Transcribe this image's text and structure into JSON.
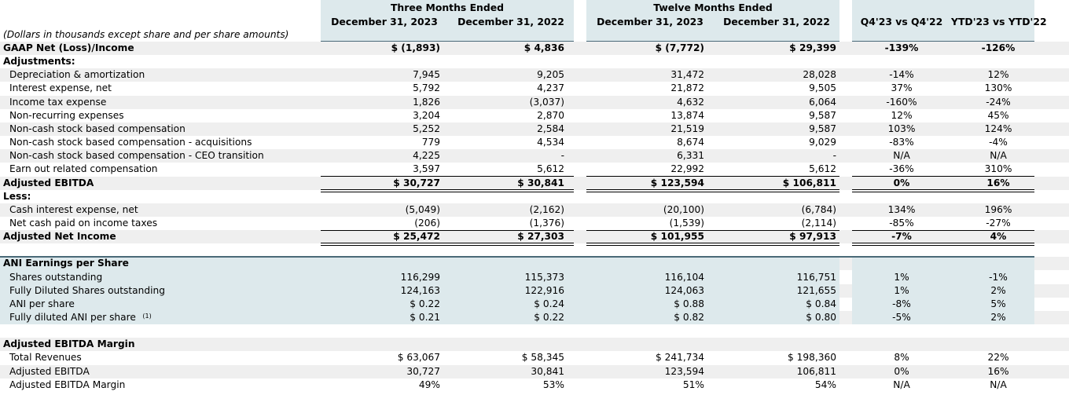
{
  "header": {
    "three_months": "Three Months Ended",
    "twelve_months": "Twelve Months Ended",
    "dec2023": "December 31, 2023",
    "dec2022": "December 31, 2022",
    "q_vs_q": "Q4'23 vs Q4'22",
    "ytd_vs_ytd": "YTD'23 vs YTD'22",
    "note": "(Dollars in thousands except share and per share amounts)"
  },
  "rows": [
    {
      "label": "GAAP Net (Loss)/Income",
      "bold": true,
      "v": [
        "$ (1,893)",
        "$ 4,836",
        "$ (7,772)",
        "$ 29,399",
        "-139%",
        "-126%"
      ]
    },
    {
      "label": "Adjustments:",
      "bold": true,
      "v": [
        "",
        "",
        "",
        "",
        "",
        ""
      ]
    },
    {
      "label": "Depreciation & amortization",
      "v": [
        "7,945",
        "9,205",
        "31,472",
        "28,028",
        "-14%",
        "12%"
      ]
    },
    {
      "label": "Interest expense, net",
      "v": [
        "5,792",
        "4,237",
        "21,872",
        "9,505",
        "37%",
        "130%"
      ]
    },
    {
      "label": "Income tax expense",
      "v": [
        "1,826",
        "(3,037)",
        "4,632",
        "6,064",
        "-160%",
        "-24%"
      ]
    },
    {
      "label": "Non-recurring expenses",
      "v": [
        "3,204",
        "2,870",
        "13,874",
        "9,587",
        "12%",
        "45%"
      ]
    },
    {
      "label": "Non-cash stock based compensation",
      "v": [
        "5,252",
        "2,584",
        "21,519",
        "9,587",
        "103%",
        "124%"
      ]
    },
    {
      "label": "Non-cash stock based compensation - acquisitions",
      "v": [
        "779",
        "4,534",
        "8,674",
        "9,029",
        "-83%",
        "-4%"
      ]
    },
    {
      "label": "Non-cash stock based compensation - CEO transition",
      "v": [
        "4,225",
        "-",
        "6,331",
        "-",
        "N/A",
        "N/A"
      ]
    },
    {
      "label": "Earn out related compensation",
      "v": [
        "3,597",
        "5,612",
        "22,992",
        "5,612",
        "-36%",
        "310%"
      ]
    },
    {
      "label": "Adjusted EBITDA",
      "bold": true,
      "v": [
        "$ 30,727",
        "$ 30,841",
        "$ 123,594",
        "$ 106,811",
        "0%",
        "16%"
      ]
    },
    {
      "label": "Less:",
      "bold": true,
      "v": [
        "",
        "",
        "",
        "",
        "",
        ""
      ]
    },
    {
      "label": "Cash interest expense, net",
      "v": [
        "(5,049)",
        "(2,162)",
        "(20,100)",
        "(6,784)",
        "134%",
        "196%"
      ]
    },
    {
      "label": "Net cash paid on income taxes",
      "v": [
        "(206)",
        "(1,376)",
        "(1,539)",
        "(2,114)",
        "-85%",
        "-27%"
      ]
    },
    {
      "label": "Adjusted Net Income",
      "bold": true,
      "v": [
        "$ 25,472",
        "$ 27,303",
        "$ 101,955",
        "$ 97,913",
        "-7%",
        "4%"
      ]
    },
    {
      "label": "",
      "v": [
        "",
        "",
        "",
        "",
        "",
        ""
      ]
    },
    {
      "label": "ANI Earnings per Share",
      "bold": true,
      "v": [
        "",
        "",
        "",
        "",
        "",
        ""
      ]
    },
    {
      "label": "Shares outstanding",
      "v": [
        "116,299",
        "115,373",
        "116,104",
        "116,751",
        "1%",
        "-1%"
      ]
    },
    {
      "label": "Fully Diluted Shares outstanding",
      "v": [
        "124,163",
        "122,916",
        "124,063",
        "121,655",
        "1%",
        "2%"
      ]
    },
    {
      "label": "ANI per share",
      "v": [
        "$ 0.22",
        "$ 0.24",
        "$ 0.88",
        "$ 0.84",
        "-8%",
        "5%"
      ]
    },
    {
      "label": "Fully diluted ANI per share",
      "sup": "(1)",
      "v": [
        "$ 0.21",
        "$ 0.22",
        "$ 0.82",
        "$ 0.80",
        "-5%",
        "2%"
      ]
    },
    {
      "label": "",
      "v": [
        "",
        "",
        "",
        "",
        "",
        ""
      ]
    },
    {
      "label": "Adjusted EBITDA Margin",
      "bold": true,
      "v": [
        "",
        "",
        "",
        "",
        "",
        ""
      ]
    },
    {
      "label": "Total Revenues",
      "v": [
        "$ 63,067",
        "$ 58,345",
        "$ 241,734",
        "$ 198,360",
        "8%",
        "22%"
      ]
    },
    {
      "label": "Adjusted EBITDA",
      "v": [
        "30,727",
        "30,841",
        "123,594",
        "106,811",
        "0%",
        "16%"
      ]
    },
    {
      "label": "Adjusted EBITDA Margin",
      "v": [
        "49%",
        "53%",
        "51%",
        "54%",
        "N/A",
        "N/A"
      ]
    }
  ]
}
